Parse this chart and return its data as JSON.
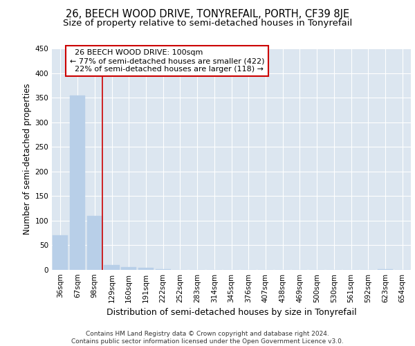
{
  "title": "26, BEECH WOOD DRIVE, TONYREFAIL, PORTH, CF39 8JE",
  "subtitle": "Size of property relative to semi-detached houses in Tonyrefail",
  "xlabel": "Distribution of semi-detached houses by size in Tonyrefail",
  "ylabel": "Number of semi-detached properties",
  "bar_labels": [
    "36sqm",
    "67sqm",
    "98sqm",
    "129sqm",
    "160sqm",
    "191sqm",
    "222sqm",
    "252sqm",
    "283sqm",
    "314sqm",
    "345sqm",
    "376sqm",
    "407sqm",
    "438sqm",
    "469sqm",
    "500sqm",
    "530sqm",
    "561sqm",
    "592sqm",
    "623sqm",
    "654sqm"
  ],
  "bar_values": [
    70,
    355,
    110,
    10,
    6,
    4,
    2,
    0,
    0,
    0,
    0,
    0,
    0,
    0,
    0,
    0,
    0,
    0,
    0,
    2,
    0
  ],
  "bar_color": "#b8cfe8",
  "bar_edge_color": "#b8cfe8",
  "property_bin_index": 2,
  "property_size": "100sqm",
  "pct_smaller": 77,
  "n_smaller": 422,
  "pct_larger": 22,
  "n_larger": 118,
  "annotation_label": "26 BEECH WOOD DRIVE: 100sqm",
  "line_color": "#cc0000",
  "box_edge_color": "#cc0000",
  "box_face_color": "#ffffff",
  "ylim": [
    0,
    450
  ],
  "yticks": [
    0,
    50,
    100,
    150,
    200,
    250,
    300,
    350,
    400,
    450
  ],
  "background_color": "#dce6f0",
  "grid_color": "#ffffff",
  "footer": "Contains HM Land Registry data © Crown copyright and database right 2024.\nContains public sector information licensed under the Open Government Licence v3.0.",
  "title_fontsize": 10.5,
  "subtitle_fontsize": 9.5,
  "ylabel_fontsize": 8.5,
  "xlabel_fontsize": 9,
  "tick_fontsize": 7.5,
  "annotation_fontsize": 8,
  "footer_fontsize": 6.5
}
